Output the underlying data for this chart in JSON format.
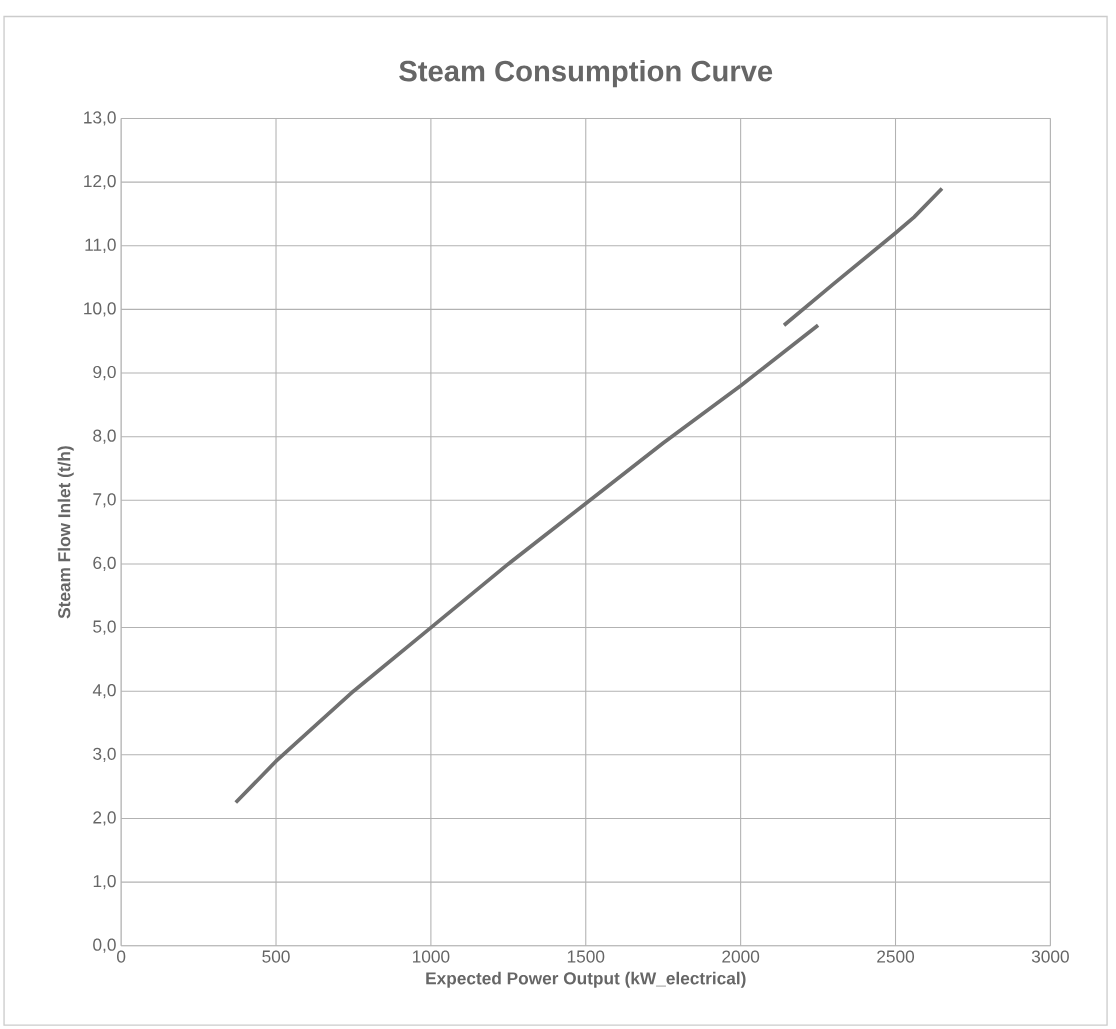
{
  "chart_data": {
    "type": "line",
    "title": "Steam Consumption Curve",
    "xlabel": "Expected Power Output (kW_electrical)",
    "ylabel": "Steam Flow Inlet (t/h)",
    "series": [
      {
        "color": "#707070",
        "x": [
          370,
          500,
          750,
          1000,
          1250,
          1500,
          1750,
          2000,
          2250
        ],
        "values": [
          2.25,
          2.9,
          4.0,
          5.0,
          6.0,
          6.95,
          7.9,
          8.8,
          9.75
        ]
      },
      {
        "color": "#707070",
        "x": [
          2140,
          2300,
          2500,
          2560,
          2650
        ],
        "values": [
          9.75,
          10.4,
          11.2,
          11.45,
          11.9
        ]
      }
    ],
    "xlim": [
      0,
      3000
    ],
    "xticks": [
      0,
      500,
      1000,
      1500,
      2000,
      2500,
      3000
    ],
    "ylim": [
      0,
      13
    ],
    "yticks": [
      {
        "value": 0,
        "label": "0,0"
      },
      {
        "value": 1,
        "label": "1,0"
      },
      {
        "value": 2,
        "label": "2,0"
      },
      {
        "value": 3,
        "label": "3,0"
      },
      {
        "value": 4,
        "label": "4,0"
      },
      {
        "value": 5,
        "label": "5,0"
      },
      {
        "value": 6,
        "label": "6,0"
      },
      {
        "value": 7,
        "label": "7,0"
      },
      {
        "value": 8,
        "label": "8,0"
      },
      {
        "value": 9,
        "label": "9,0"
      },
      {
        "value": 10,
        "label": "10,0"
      },
      {
        "value": 11,
        "label": "11,0"
      },
      {
        "value": 12,
        "label": "12,0"
      },
      {
        "value": 13,
        "label": "13,0"
      }
    ],
    "grid": true,
    "marker": "none",
    "line_style": "solid"
  }
}
